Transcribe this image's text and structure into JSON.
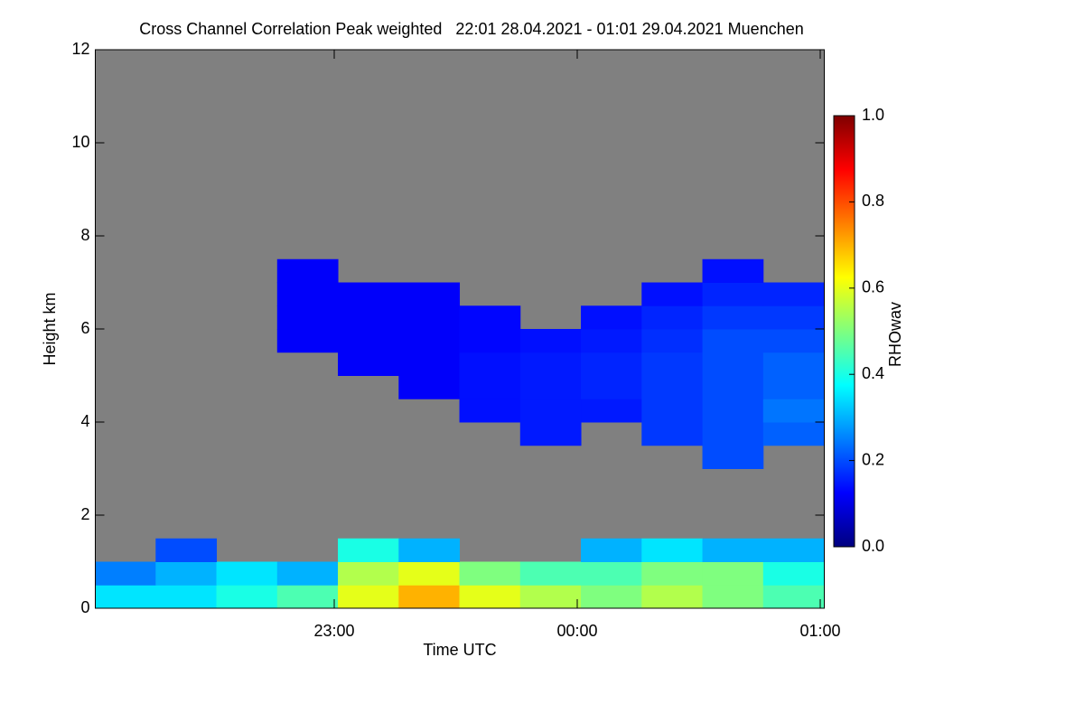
{
  "chart_data": {
    "type": "heatmap",
    "title": "Cross Channel Correlation Peak weighted   22:01 28.04.2021 - 01:01 29.04.2021 Muenchen",
    "x_label": "Time UTC",
    "y_label": "Height km",
    "colorbar_label": "RHOwav",
    "xlim": [
      22.0167,
      25.0167
    ],
    "xticks": [
      {
        "value": 23,
        "label": "23:00"
      },
      {
        "value": 24,
        "label": "00:00"
      },
      {
        "value": 25,
        "label": "01:00"
      }
    ],
    "ylim": [
      0,
      12
    ],
    "yticks": [
      0,
      2,
      4,
      6,
      8,
      10,
      12
    ],
    "zlim": [
      0,
      1
    ],
    "zticks": [
      {
        "value": 0,
        "label": "0.0"
      },
      0.2,
      0.4,
      0.6,
      0.8,
      {
        "value": 1,
        "label": "1.0"
      }
    ],
    "colormap": [
      "#00007f",
      "#0000ff",
      "#007fff",
      "#00ffff",
      "#7fff7f",
      "#ffff00",
      "#ff7f00",
      "#ff0000",
      "#7f0000"
    ],
    "missing_color": "#808080",
    "x": [
      22.14,
      22.39,
      22.64,
      22.89,
      23.14,
      23.39,
      23.64,
      23.89,
      24.14,
      24.39,
      24.64,
      24.89
    ],
    "y": [
      0.25,
      0.75,
      1.25,
      1.75,
      2.25,
      2.75,
      3.25,
      3.75,
      4.25,
      4.75,
      5.25,
      5.75,
      6.25,
      6.75,
      7.25,
      7.75
    ],
    "z": [
      [
        0.35,
        0.35,
        0.4,
        0.45,
        0.6,
        0.7,
        0.6,
        0.55,
        0.5,
        0.55,
        0.5,
        0.45
      ],
      [
        0.25,
        0.3,
        0.35,
        0.3,
        0.55,
        0.6,
        0.5,
        0.45,
        0.45,
        0.5,
        0.5,
        0.4
      ],
      [
        null,
        0.2,
        null,
        null,
        0.4,
        0.3,
        null,
        null,
        0.3,
        0.35,
        0.3,
        0.3
      ],
      [
        null,
        null,
        null,
        null,
        null,
        null,
        null,
        null,
        null,
        null,
        null,
        null
      ],
      [
        null,
        null,
        null,
        null,
        null,
        null,
        null,
        null,
        null,
        null,
        null,
        null
      ],
      [
        null,
        null,
        null,
        null,
        null,
        null,
        null,
        null,
        null,
        null,
        null,
        null
      ],
      [
        null,
        null,
        null,
        null,
        null,
        null,
        null,
        null,
        null,
        null,
        0.2,
        null
      ],
      [
        null,
        null,
        null,
        null,
        null,
        null,
        null,
        0.15,
        null,
        0.18,
        0.2,
        0.22
      ],
      [
        null,
        null,
        null,
        null,
        null,
        null,
        0.14,
        0.15,
        0.15,
        0.18,
        0.2,
        0.24
      ],
      [
        null,
        null,
        null,
        null,
        null,
        0.12,
        0.14,
        0.15,
        0.16,
        0.18,
        0.2,
        0.22
      ],
      [
        null,
        null,
        null,
        null,
        0.12,
        0.12,
        0.14,
        0.15,
        0.16,
        0.18,
        0.2,
        0.22
      ],
      [
        null,
        null,
        null,
        0.12,
        0.12,
        0.12,
        0.13,
        0.14,
        0.15,
        0.17,
        0.2,
        0.2
      ],
      [
        null,
        null,
        null,
        0.12,
        0.12,
        0.12,
        0.13,
        null,
        0.14,
        0.16,
        0.18,
        0.18
      ],
      [
        null,
        null,
        null,
        0.12,
        0.12,
        0.12,
        null,
        null,
        null,
        0.14,
        0.16,
        0.16
      ],
      [
        null,
        null,
        null,
        0.12,
        null,
        null,
        null,
        null,
        null,
        null,
        0.14,
        null
      ],
      [
        null,
        null,
        null,
        null,
        null,
        null,
        null,
        null,
        null,
        null,
        null,
        null
      ]
    ]
  }
}
